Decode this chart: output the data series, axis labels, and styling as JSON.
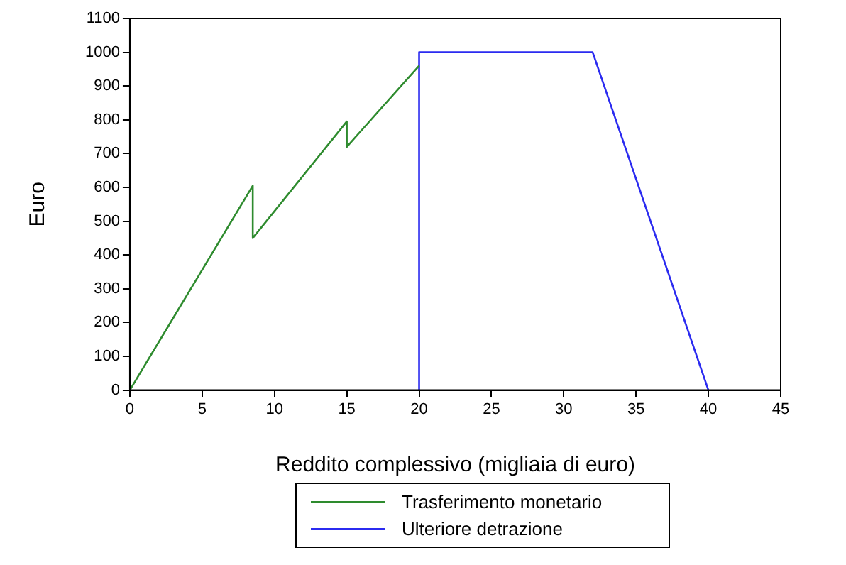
{
  "chart_data": {
    "type": "line",
    "xlabel": "Reddito complessivo (migliaia di euro)",
    "ylabel": "Euro",
    "xlim": [
      0,
      45
    ],
    "xticks": [
      0,
      5,
      10,
      15,
      20,
      25,
      30,
      35,
      40,
      45
    ],
    "ylim": [
      0,
      1100
    ],
    "yticks": [
      0,
      100,
      200,
      300,
      400,
      500,
      600,
      700,
      800,
      900,
      1000,
      1100
    ],
    "grid": false,
    "legend": "bottom",
    "marker": "none",
    "line_style": "solid",
    "series": [
      {
        "name": "Trasferimento monetario",
        "color": "#2e8b2e",
        "x": [
          0,
          8.5,
          8.5,
          15,
          15,
          20
        ],
        "values": [
          0,
          605,
          450,
          795,
          720,
          960
        ]
      },
      {
        "name": "Ulteriore detrazione",
        "color": "#2b2bf0",
        "x": [
          20,
          20,
          32,
          40
        ],
        "values": [
          0,
          1000,
          1000,
          0
        ]
      }
    ]
  }
}
